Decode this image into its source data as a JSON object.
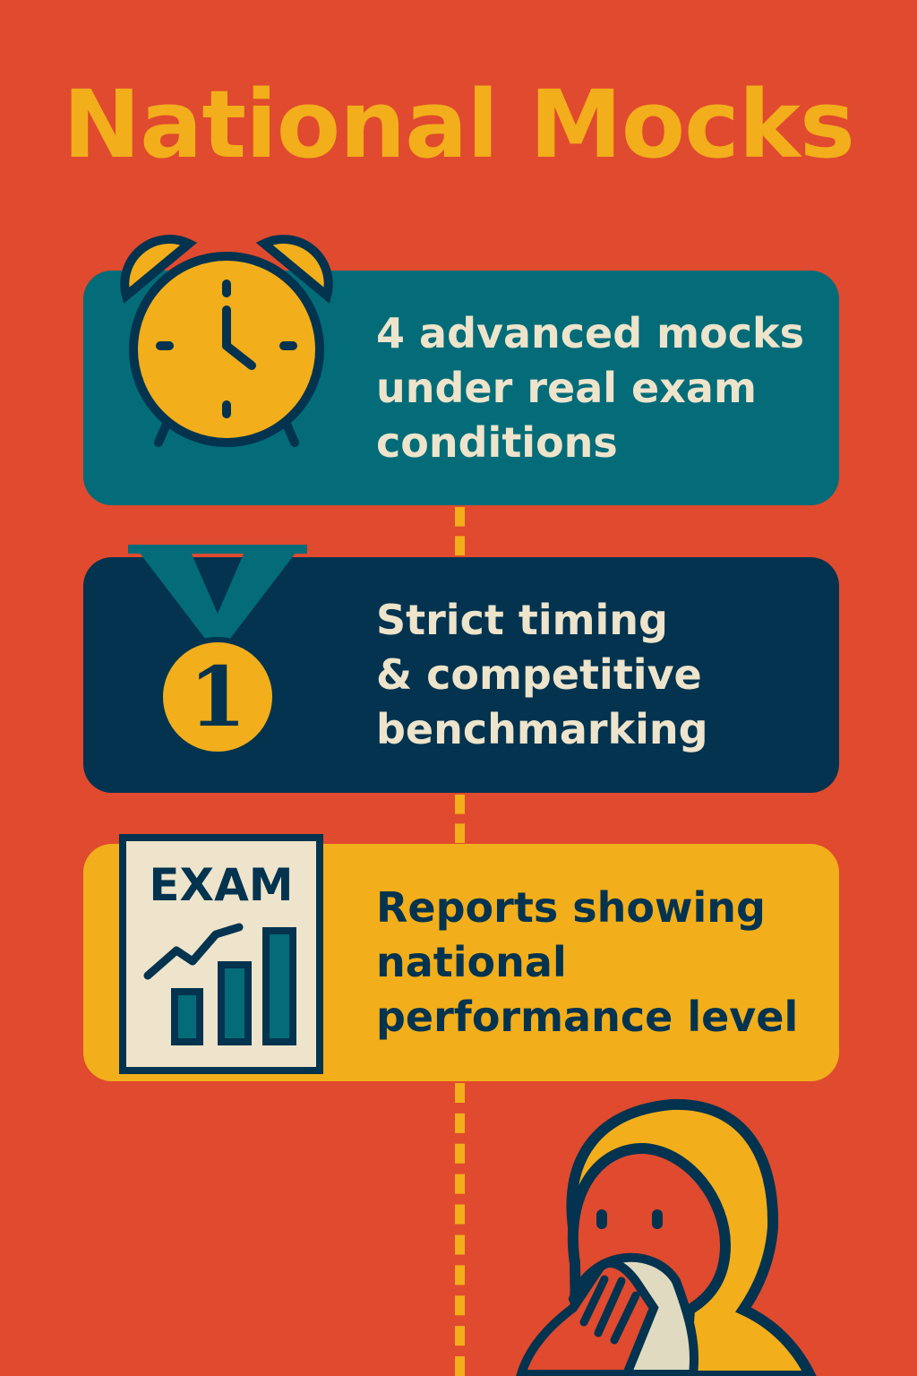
{
  "title": "National Mocks",
  "colors": {
    "background": "#E04A2E",
    "accent_yellow": "#F2AE1B",
    "teal": "#036C78",
    "navy": "#03334F",
    "cream": "#EDE4CB"
  },
  "cards": [
    {
      "icon": "alarm-clock-icon",
      "lines": [
        "4 advanced mocks",
        "under real exam",
        "conditions"
      ]
    },
    {
      "icon": "medal-icon",
      "medal_number": "1",
      "lines": [
        "Strict timing",
        "& competitive",
        "benchmarking"
      ]
    },
    {
      "icon": "exam-report-icon",
      "icon_label": "EXAM",
      "lines": [
        "Reports showing",
        "national",
        "performance level"
      ]
    }
  ],
  "illustration": "hooded-person-icon"
}
